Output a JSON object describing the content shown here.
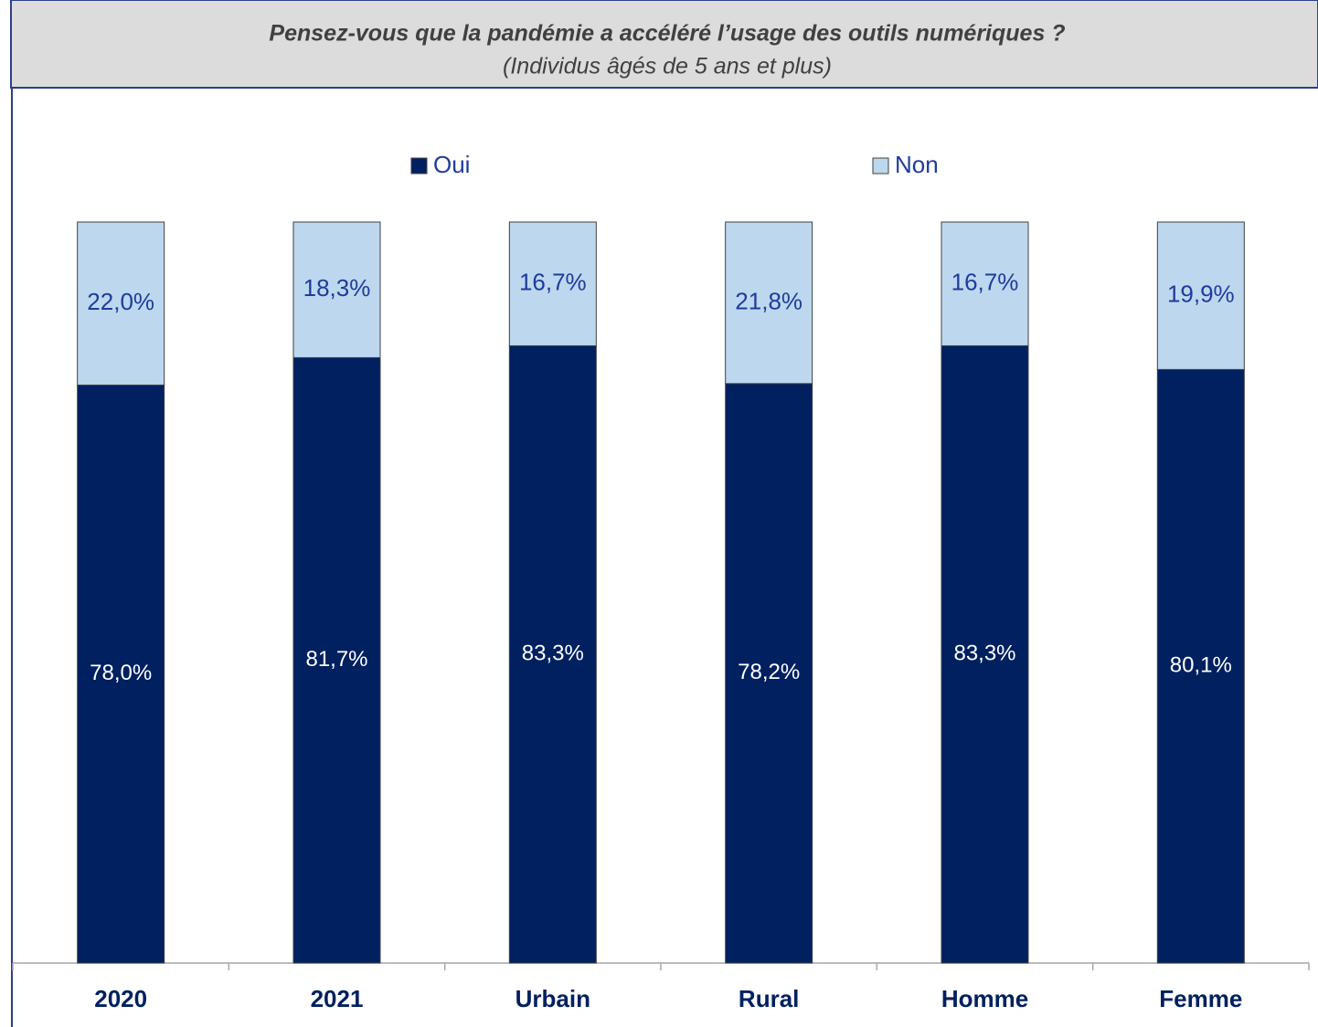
{
  "chart_data": {
    "type": "stacked_bar",
    "title": "Pensez-vous que la pandémie a accéléré l’usage des outils numériques ?",
    "subtitle": "(Individus âgés de 5 ans et plus)",
    "categories": [
      "2020",
      "2021",
      "Urbain",
      "Rural",
      "Homme",
      "Femme"
    ],
    "series": [
      {
        "name": "Oui",
        "color": "#002060",
        "values": [
          78.0,
          81.7,
          83.3,
          78.2,
          83.3,
          80.1
        ],
        "value_labels": [
          "78,0%",
          "81,7%",
          "83,3%",
          "78,2%",
          "83,3%",
          "80,1%"
        ]
      },
      {
        "name": "Non",
        "color": "#bdd7ee",
        "values": [
          22.0,
          18.3,
          16.7,
          21.8,
          16.7,
          19.9
        ],
        "value_labels": [
          "22,0%",
          "18,3%",
          "16,7%",
          "21,8%",
          "16,7%",
          "19,9%"
        ]
      }
    ],
    "ylim": [
      0,
      100
    ],
    "legend": "top"
  }
}
